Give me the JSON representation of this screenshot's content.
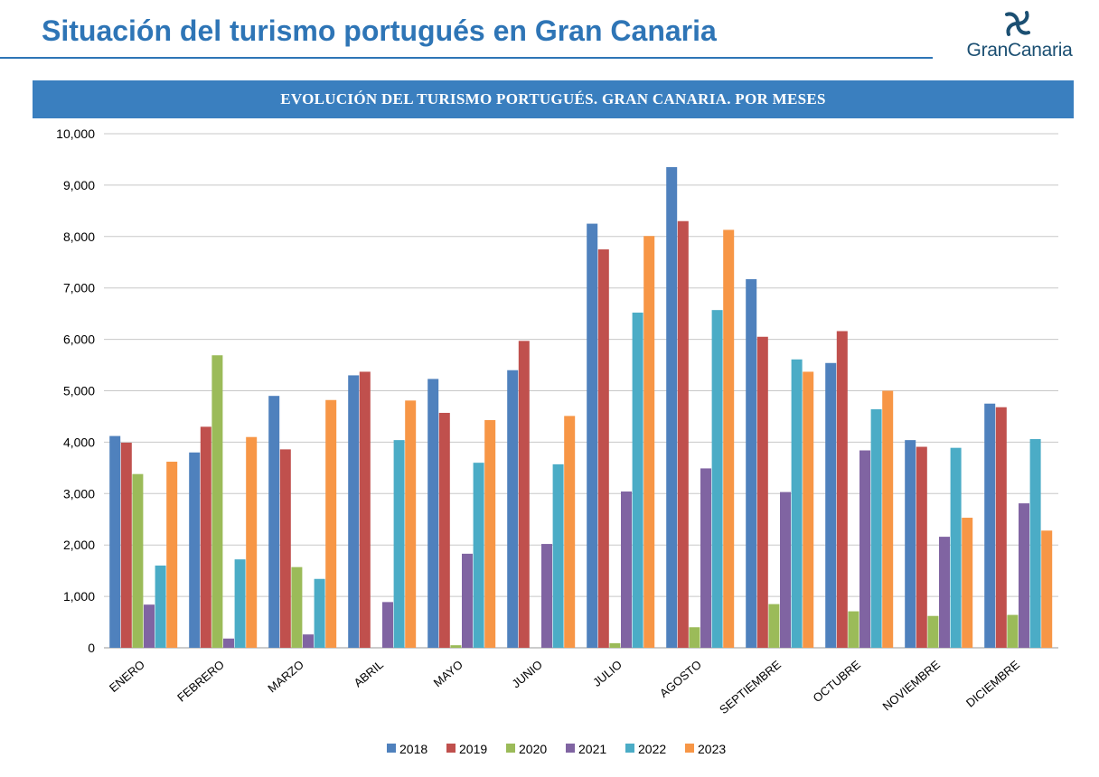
{
  "header": {
    "title": "Situación del turismo portugués en Gran Canaria",
    "logo_text": "GranCanaria",
    "logo_icon": "pinwheel-icon"
  },
  "chart_data": {
    "type": "bar",
    "title": "EVOLUCIÓN DEL TURISMO PORTUGUÉS. GRAN CANARIA. POR MESES",
    "xlabel": "",
    "ylabel": "",
    "ylim": [
      0,
      10000
    ],
    "yticks": [
      0,
      1000,
      2000,
      3000,
      4000,
      5000,
      6000,
      7000,
      8000,
      9000,
      10000
    ],
    "ytick_labels": [
      "0",
      "1,000",
      "2,000",
      "3,000",
      "4,000",
      "5,000",
      "6,000",
      "7,000",
      "8,000",
      "9,000",
      "10,000"
    ],
    "grid": true,
    "legend": "bottom",
    "categories": [
      "ENERO",
      "FEBRERO",
      "MARZO",
      "ABRIL",
      "MAYO",
      "JUNIO",
      "JULIO",
      "AGOSTO",
      "SEPTIEMBRE",
      "OCTUBRE",
      "NOVIEMBRE",
      "DICIEMBRE"
    ],
    "series": [
      {
        "name": "2018",
        "color": "#4f81bd",
        "values": [
          4120,
          3800,
          4900,
          5300,
          5230,
          5400,
          8250,
          9350,
          7170,
          5540,
          4040,
          4750
        ]
      },
      {
        "name": "2019",
        "color": "#c0504d",
        "values": [
          3990,
          4300,
          3860,
          5370,
          4570,
          5970,
          7750,
          8300,
          6050,
          6160,
          3910,
          4680
        ]
      },
      {
        "name": "2020",
        "color": "#9bbb59",
        "values": [
          3380,
          5690,
          1570,
          0,
          50,
          0,
          90,
          400,
          850,
          710,
          620,
          640
        ]
      },
      {
        "name": "2021",
        "color": "#8064a2",
        "values": [
          840,
          180,
          260,
          890,
          1830,
          2020,
          3040,
          3490,
          3030,
          3840,
          2160,
          2810
        ]
      },
      {
        "name": "2022",
        "color": "#4bacc6",
        "values": [
          1600,
          1720,
          1340,
          4040,
          3600,
          3570,
          6520,
          6570,
          5610,
          4640,
          3890,
          4060
        ]
      },
      {
        "name": "2023",
        "color": "#f79646",
        "values": [
          3620,
          4100,
          4820,
          4810,
          4430,
          4510,
          8010,
          8130,
          5370,
          5000,
          2530,
          2280
        ]
      }
    ]
  }
}
